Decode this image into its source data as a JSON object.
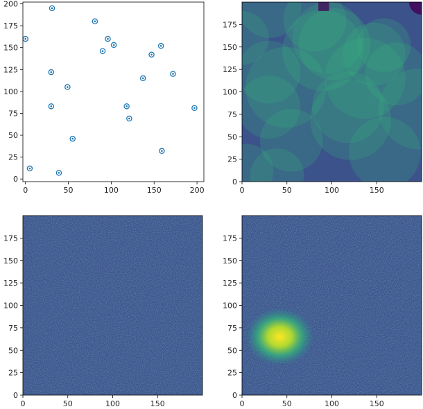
{
  "figure": {
    "panels": 4,
    "layout": "2x2",
    "colormap": "viridis"
  },
  "chart_data": [
    {
      "type": "scatter",
      "title": "",
      "xlabel": "",
      "ylabel": "",
      "xlim": [
        -3,
        208
      ],
      "ylim": [
        202,
        -3
      ],
      "y_inverted": true,
      "x_ticks": [
        "0",
        "50",
        "100",
        "150",
        "200"
      ],
      "y_ticks": [
        "0",
        "25",
        "50",
        "75",
        "100",
        "125",
        "150",
        "175",
        "200"
      ],
      "marker": "circle with center dot",
      "marker_color": "#1f77b4",
      "points": [
        {
          "x": 5,
          "y": 12
        },
        {
          "x": 39,
          "y": 7
        },
        {
          "x": 55,
          "y": 46
        },
        {
          "x": 159,
          "y": 32
        },
        {
          "x": 121,
          "y": 69
        },
        {
          "x": 118,
          "y": 83
        },
        {
          "x": 30,
          "y": 83
        },
        {
          "x": 197,
          "y": 81
        },
        {
          "x": 49,
          "y": 105
        },
        {
          "x": 137,
          "y": 115
        },
        {
          "x": 172,
          "y": 120
        },
        {
          "x": 30,
          "y": 122
        },
        {
          "x": 147,
          "y": 142
        },
        {
          "x": 90,
          "y": 146
        },
        {
          "x": 103,
          "y": 153
        },
        {
          "x": 158,
          "y": 152
        },
        {
          "x": 0,
          "y": 160
        },
        {
          "x": 96,
          "y": 160
        },
        {
          "x": 81,
          "y": 180
        },
        {
          "x": 31,
          "y": 195
        }
      ]
    },
    {
      "type": "heatmap",
      "title": "",
      "description": "overlapping translucent discs (image of circle density)",
      "xlim": [
        0,
        200
      ],
      "ylim": [
        200,
        0
      ],
      "x_ticks": [
        "0",
        "50",
        "100",
        "150"
      ],
      "y_ticks": [
        "0",
        "25",
        "50",
        "75",
        "100",
        "125",
        "150",
        "175"
      ],
      "background_color": "#3b528b",
      "discs": [
        {
          "cx": 5,
          "cy": 12,
          "r": 30
        },
        {
          "cx": 39,
          "cy": 7,
          "r": 30
        },
        {
          "cx": 55,
          "cy": 46,
          "r": 35
        },
        {
          "cx": 159,
          "cy": 32,
          "r": 40
        },
        {
          "cx": 121,
          "cy": 69,
          "r": 45
        },
        {
          "cx": 118,
          "cy": 83,
          "r": 40
        },
        {
          "cx": 30,
          "cy": 83,
          "r": 35
        },
        {
          "cx": 197,
          "cy": 81,
          "r": 45
        },
        {
          "cx": 49,
          "cy": 105,
          "r": 45
        },
        {
          "cx": 137,
          "cy": 115,
          "r": 45
        },
        {
          "cx": 172,
          "cy": 120,
          "r": 35
        },
        {
          "cx": 30,
          "cy": 122,
          "r": 35
        },
        {
          "cx": 147,
          "cy": 142,
          "r": 35
        },
        {
          "cx": 90,
          "cy": 146,
          "r": 45
        },
        {
          "cx": 103,
          "cy": 153,
          "r": 40
        },
        {
          "cx": 158,
          "cy": 152,
          "r": 30
        },
        {
          "cx": 0,
          "cy": 160,
          "r": 30
        },
        {
          "cx": 96,
          "cy": 160,
          "r": 40
        },
        {
          "cx": 81,
          "cy": 180,
          "r": 35
        },
        {
          "cx": 31,
          "cy": 195,
          "r": 35
        }
      ]
    },
    {
      "type": "heatmap",
      "title": "",
      "description": "uniform noise",
      "xlim": [
        0,
        200
      ],
      "ylim": [
        200,
        0
      ],
      "x_ticks": [
        "0",
        "50",
        "100",
        "150"
      ],
      "y_ticks": [
        "0",
        "25",
        "50",
        "75",
        "100",
        "125",
        "150",
        "175"
      ],
      "base_color": "#3b528b"
    },
    {
      "type": "heatmap",
      "title": "",
      "description": "noise with bright blob",
      "xlim": [
        0,
        200
      ],
      "ylim": [
        200,
        0
      ],
      "x_ticks": [
        "0",
        "50",
        "100",
        "150"
      ],
      "y_ticks": [
        "0",
        "25",
        "50",
        "75",
        "100",
        "125",
        "150",
        "175"
      ],
      "base_color": "#3b528b",
      "hotspot": {
        "cx": 42,
        "cy": 65,
        "rx": 38,
        "ry": 32
      }
    }
  ]
}
